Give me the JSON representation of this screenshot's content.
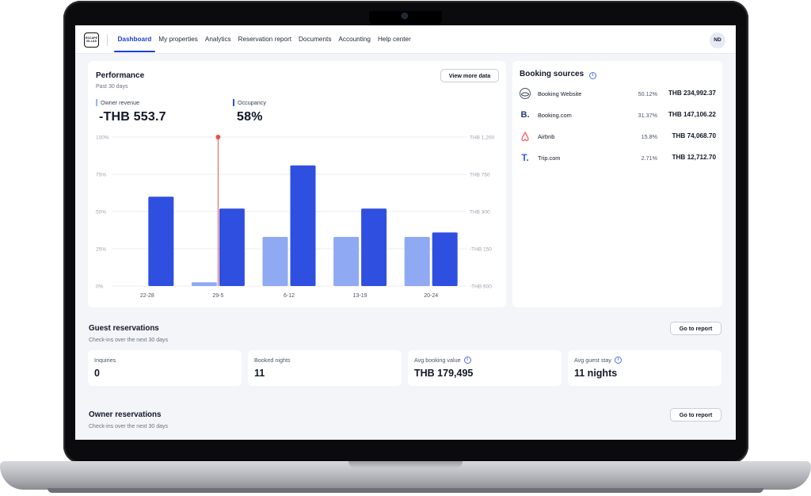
{
  "nav": {
    "logo_line1": "ESCAPE",
    "logo_line2": "VILLAS",
    "items": [
      {
        "label": "Dashboard",
        "active": true
      },
      {
        "label": "My properties",
        "active": false
      },
      {
        "label": "Analytics",
        "active": false
      },
      {
        "label": "Reservation report",
        "active": false
      },
      {
        "label": "Documents",
        "active": false
      },
      {
        "label": "Accounting",
        "active": false
      },
      {
        "label": "Help center",
        "active": false
      }
    ],
    "avatar_initials": "ND"
  },
  "performance": {
    "title": "Performance",
    "subtitle": "Past 30 days",
    "view_more_label": "View more data",
    "owner_revenue_label": "Owner revenue",
    "owner_revenue_value": "-THB 553.7",
    "occupancy_label": "Occupancy",
    "occupancy_value": "58%"
  },
  "chart_data": {
    "type": "bar",
    "categories": [
      "22-28",
      "29-5",
      "6-12",
      "13-19",
      "20-24"
    ],
    "left_axis_ticks": [
      "100%",
      "75%",
      "50%",
      "25%",
      "0%"
    ],
    "right_axis_ticks": [
      "THB 1,200",
      "THB 750",
      "THB 300",
      "-THB 150",
      "-THB 600"
    ],
    "series": [
      {
        "values_pct": [
          0,
          2.5,
          33,
          33,
          33
        ],
        "color": "#8fa9f2"
      },
      {
        "values_pct": [
          60,
          52,
          81,
          52,
          36
        ],
        "color": "#2f4fe0"
      }
    ],
    "ylim": [
      0,
      100
    ],
    "marker_category": "29-5",
    "marker_color": "#e5534b",
    "grid": true
  },
  "booking_sources": {
    "title": "Booking sources",
    "rows": [
      {
        "name": "Booking Website",
        "pct": "50.12%",
        "amount": "THB 234,992.37",
        "icon": "globe-icon"
      },
      {
        "name": "Booking.com",
        "pct": "31.37%",
        "amount": "THB 147,106.22",
        "icon": "booking-com-icon"
      },
      {
        "name": "Airbnb",
        "pct": "15.8%",
        "amount": "THB 74,068.70",
        "icon": "airbnb-icon"
      },
      {
        "name": "Trip.com",
        "pct": "2.71%",
        "amount": "THB 12,712.70",
        "icon": "trip-com-icon"
      }
    ]
  },
  "guest_reservations": {
    "title": "Guest reservations",
    "subtitle": "Check-ins over the next 30 days",
    "go_label": "Go to report",
    "stats": [
      {
        "label": "Inquiries",
        "value": "0",
        "info": false
      },
      {
        "label": "Booked nights",
        "value": "11",
        "info": false
      },
      {
        "label": "Avg booking value",
        "value": "THB 179,495",
        "info": true
      },
      {
        "label": "Avg guest stay",
        "value": "11 nights",
        "info": true
      }
    ]
  },
  "owner_reservations": {
    "title": "Owner reservations",
    "subtitle": "Check-ins over the next 30 days",
    "go_label": "Go to report"
  },
  "colors": {
    "accent": "#1d3fd8",
    "bar_dark": "#2f4fe0",
    "bar_light": "#8fa9f2",
    "marker": "#e5534b",
    "page_bg": "#f4f5f9"
  }
}
